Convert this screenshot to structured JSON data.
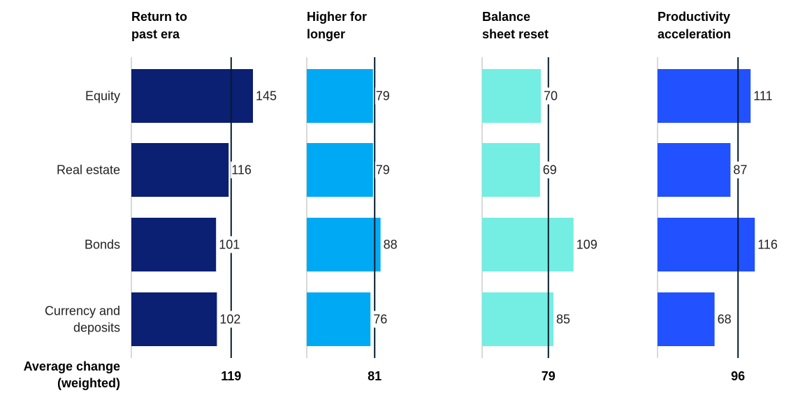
{
  "chart_data": {
    "type": "bar",
    "orientation": "horizontal",
    "categories": [
      "Equity",
      "Real estate",
      "Bonds",
      "Currency and deposits"
    ],
    "category_lines": [
      [
        "Equity"
      ],
      [
        "Real estate"
      ],
      [
        "Bonds"
      ],
      [
        "Currency and",
        "deposits"
      ]
    ],
    "average_label_lines": [
      "Average change",
      "(weighted)"
    ],
    "panels": [
      {
        "title_lines": [
          "Return to",
          "past era"
        ],
        "values": [
          145,
          116,
          101,
          102
        ],
        "average": 119,
        "color": "#0B1F73"
      },
      {
        "title_lines": [
          "Higher for",
          "longer"
        ],
        "values": [
          79,
          79,
          88,
          76
        ],
        "average": 81,
        "color": "#00A9F4"
      },
      {
        "title_lines": [
          "Balance",
          "sheet reset"
        ],
        "values": [
          70,
          69,
          109,
          85
        ],
        "average": 79,
        "color": "#74EDE3"
      },
      {
        "title_lines": [
          "Productivity",
          "acceleration"
        ],
        "values": [
          111,
          87,
          116,
          68
        ],
        "average": 96,
        "color": "#2251FF"
      }
    ],
    "reference_line_color": "#051C2C",
    "axis_line_color": "#B3B3B3"
  }
}
